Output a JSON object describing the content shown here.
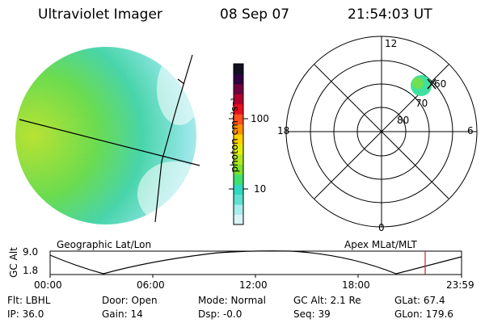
{
  "header": {
    "title": "Ultraviolet Imager",
    "date": "08 Sep 07",
    "time": "21:54:03 UT"
  },
  "colorbar": {
    "unit_label": "photon cm⁻²s⁻¹",
    "ticks": [
      "100",
      "10"
    ],
    "colors": [
      "#d8f4f4",
      "#a8ecec",
      "#60e0d0",
      "#30d8c0",
      "#40e070",
      "#80e030",
      "#b0e820",
      "#e0ec10",
      "#ffd000",
      "#ff9000",
      "#ff5020",
      "#e81020",
      "#b00030",
      "#700040",
      "#300040",
      "#101020"
    ]
  },
  "polar_plot": {
    "mlt_labels": {
      "top": "12",
      "left": "18",
      "right": "6",
      "bottom": "0"
    },
    "lat_labels": [
      "60",
      "70",
      "80"
    ],
    "satellite_marker": "x-marker"
  },
  "orbit_plot": {
    "left_title": "Geographic Lat/Lon",
    "right_title": "Apex  MLat/MLT",
    "ylabel": "GC Alt",
    "yticks": [
      "9.0",
      "1.8"
    ],
    "xticks": [
      "00:00",
      "06:00",
      "12:00",
      "18:00",
      "23:59"
    ],
    "current_time_color": "#c02020"
  },
  "info": {
    "flt": "Flt: LBHL",
    "ip": "IP: 36.0",
    "door": "Door: Open",
    "gain": "Gain: 14",
    "mode": "Mode: Normal",
    "dsp": "Dsp:    -0.0",
    "gcalt": "GC Alt: 2.1 Re",
    "seq": "Seq: 39",
    "glat": "GLat:  67.4",
    "glon": "GLon: 179.6"
  }
}
